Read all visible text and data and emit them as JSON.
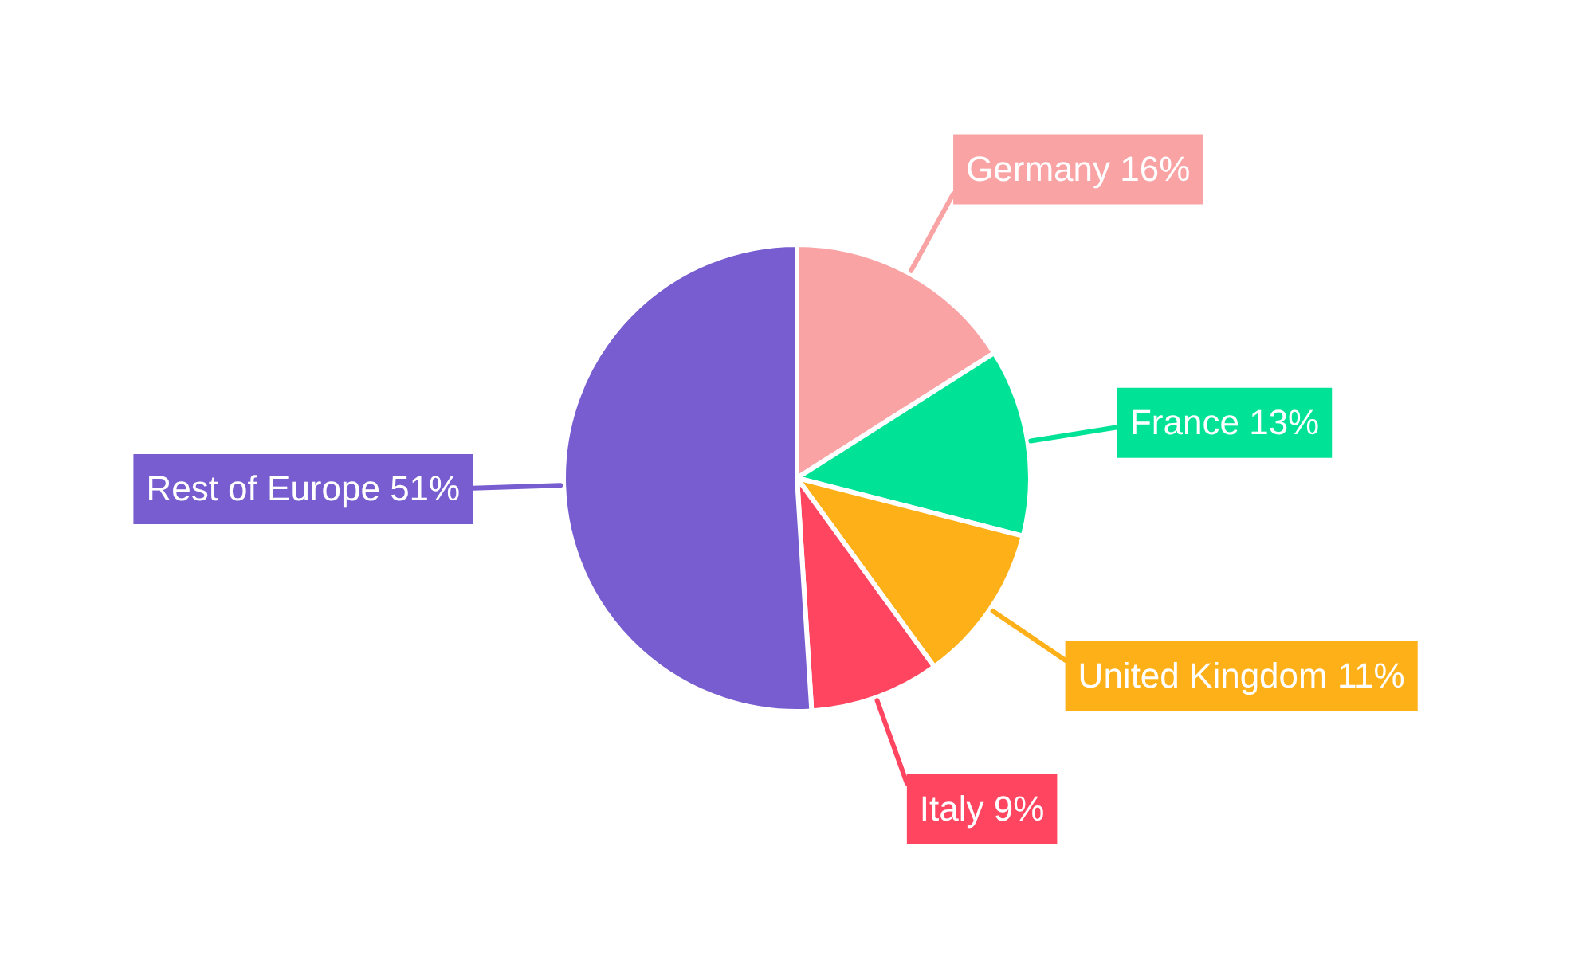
{
  "chart_data": {
    "type": "pie",
    "categories": [
      "Germany",
      "France",
      "United Kingdom",
      "Italy",
      "Rest of Europe"
    ],
    "values": [
      16,
      13,
      11,
      9,
      51
    ],
    "colors": [
      "#f9a3a4",
      "#00e396",
      "#feb019",
      "#ff4560",
      "#775dd0"
    ],
    "value_labels": [
      "16%",
      "13%",
      "11%",
      "9%",
      "51%"
    ]
  }
}
